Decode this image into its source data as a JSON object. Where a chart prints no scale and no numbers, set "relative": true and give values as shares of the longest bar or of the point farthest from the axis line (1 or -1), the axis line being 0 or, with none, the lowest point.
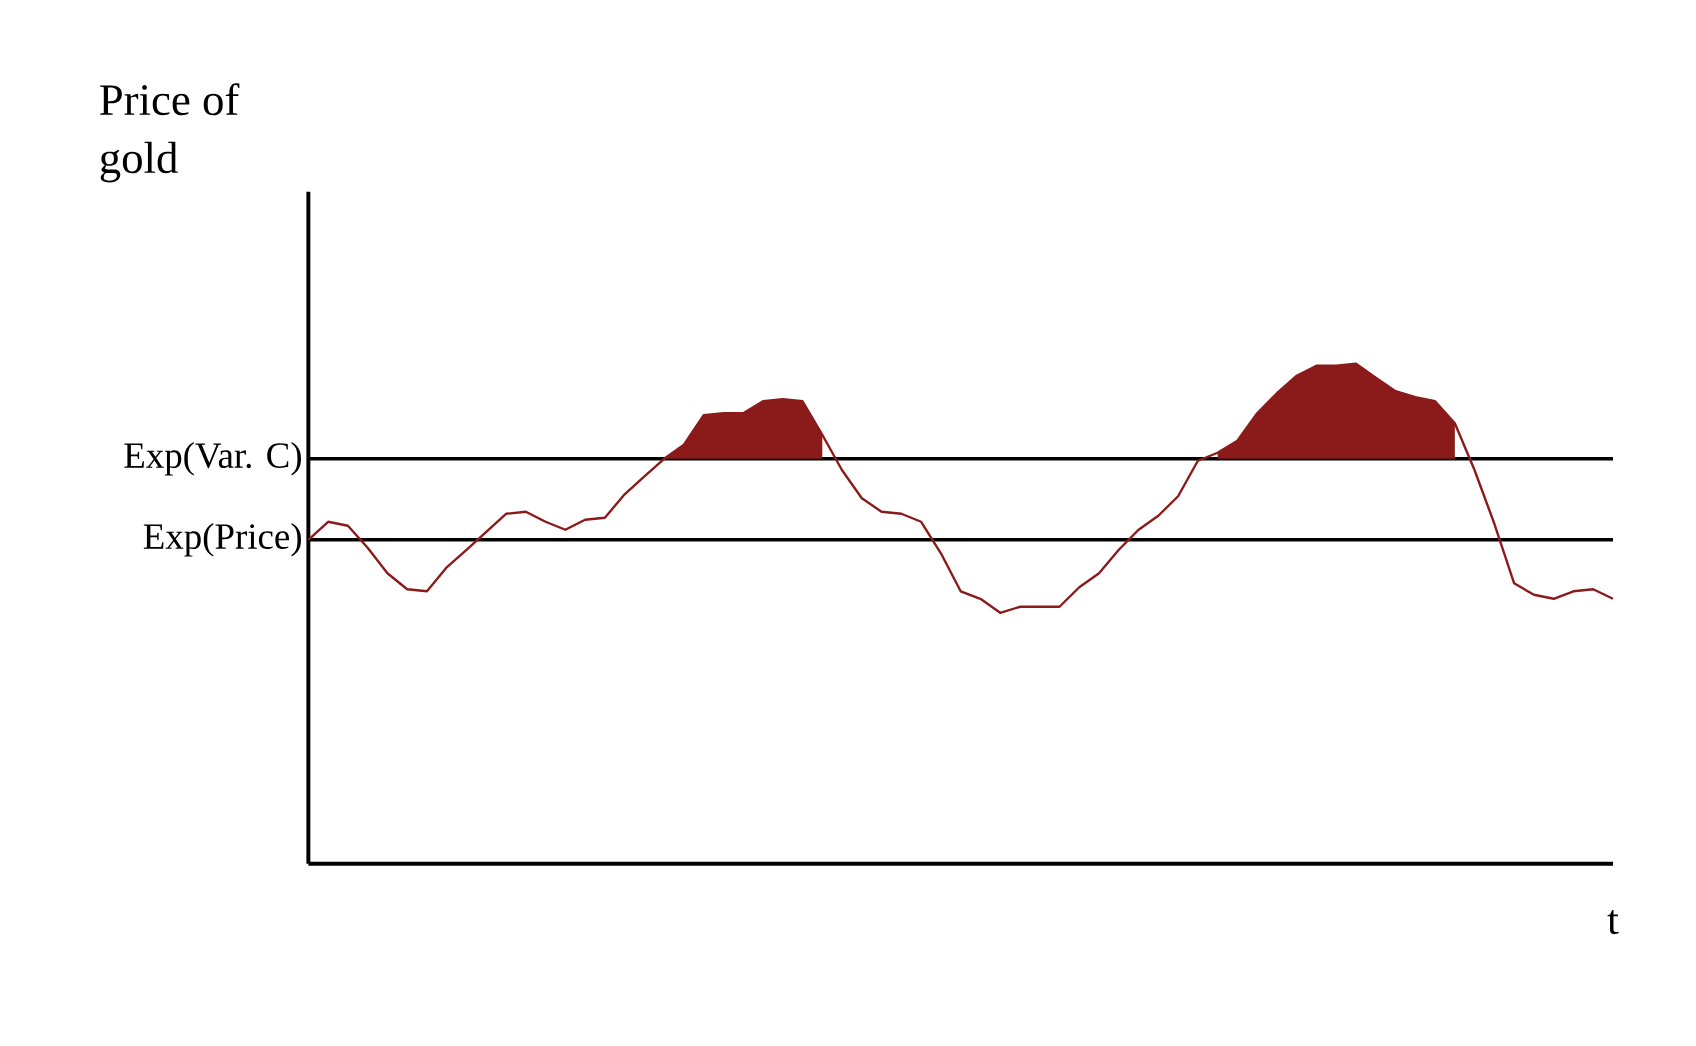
{
  "chart_data": {
    "type": "line",
    "xlabel": "t",
    "ylabel": "Price of gold",
    "relative": true,
    "categories": [
      null,
      null,
      null,
      null,
      null,
      null,
      null,
      null,
      null,
      null,
      null,
      null,
      null,
      null,
      null,
      null,
      null,
      null,
      null,
      null,
      null,
      null,
      null,
      null,
      null,
      null,
      null,
      null,
      null,
      null,
      null,
      null,
      null,
      null,
      null,
      null,
      null,
      null,
      null,
      null,
      null,
      null,
      null,
      null,
      null,
      null,
      null,
      null,
      null,
      null,
      null,
      null,
      null,
      null,
      null,
      null,
      null,
      null,
      null,
      null,
      null,
      null,
      null,
      null,
      null,
      null,
      null
    ],
    "series": [
      {
        "color": "#8b1a1a",
        "values": [
          0.648,
          0.684,
          0.676,
          0.632,
          0.581,
          0.549,
          0.545,
          0.593,
          0.628,
          0.664,
          0.7,
          0.704,
          0.684,
          0.668,
          0.688,
          0.692,
          0.739,
          0.775,
          0.81,
          0.838,
          0.897,
          0.901,
          0.901,
          0.925,
          0.929,
          0.925,
          0.858,
          0.787,
          0.731,
          0.704,
          0.7,
          0.684,
          0.621,
          0.545,
          0.53,
          0.502,
          0.514,
          0.514,
          0.514,
          0.553,
          0.581,
          0.628,
          0.668,
          0.696,
          0.735,
          0.806,
          0.822,
          0.846,
          0.901,
          0.941,
          0.976,
          0.996,
          0.996,
          1,
          0.972,
          0.945,
          0.933,
          0.925,
          0.881,
          0.787,
          0.68,
          0.561,
          0.538,
          0.53,
          0.545,
          0.549,
          0.53
        ],
        "lower": [
          null,
          null,
          null,
          null,
          null,
          null,
          null,
          null,
          null,
          null,
          null,
          null,
          null,
          null,
          null,
          null,
          null,
          null,
          0.81,
          0.81,
          0.81,
          0.81,
          0.81,
          0.81,
          0.81,
          0.81,
          0.81,
          null,
          null,
          null,
          null,
          null,
          null,
          null,
          null,
          null,
          null,
          null,
          null,
          null,
          null,
          null,
          null,
          null,
          null,
          null,
          0.81,
          0.81,
          0.81,
          0.81,
          0.81,
          0.81,
          0.81,
          0.81,
          0.81,
          0.81,
          0.81,
          0.81,
          0.81,
          null,
          null,
          null,
          null,
          null,
          null,
          null,
          null
        ],
        "upper": [
          null,
          null,
          null,
          null,
          null,
          null,
          null,
          null,
          null,
          null,
          null,
          null,
          null,
          null,
          null,
          null,
          null,
          null,
          0.81,
          0.838,
          0.897,
          0.901,
          0.901,
          0.925,
          0.929,
          0.925,
          0.858,
          null,
          null,
          null,
          null,
          null,
          null,
          null,
          null,
          null,
          null,
          null,
          null,
          null,
          null,
          null,
          null,
          null,
          null,
          null,
          0.822,
          0.846,
          0.901,
          0.941,
          0.976,
          0.996,
          0.996,
          1,
          0.972,
          0.945,
          0.933,
          0.925,
          0.881,
          null,
          null,
          null,
          null,
          null,
          null,
          null,
          null
        ]
      }
    ],
    "ref_lines": [
      {
        "axis": "y",
        "value": 0.81,
        "label": "Exp(Var. C)",
        "color": "#000000"
      },
      {
        "axis": "y",
        "value": 0.648,
        "label": "Exp(Price)",
        "color": "#000000"
      }
    ]
  }
}
